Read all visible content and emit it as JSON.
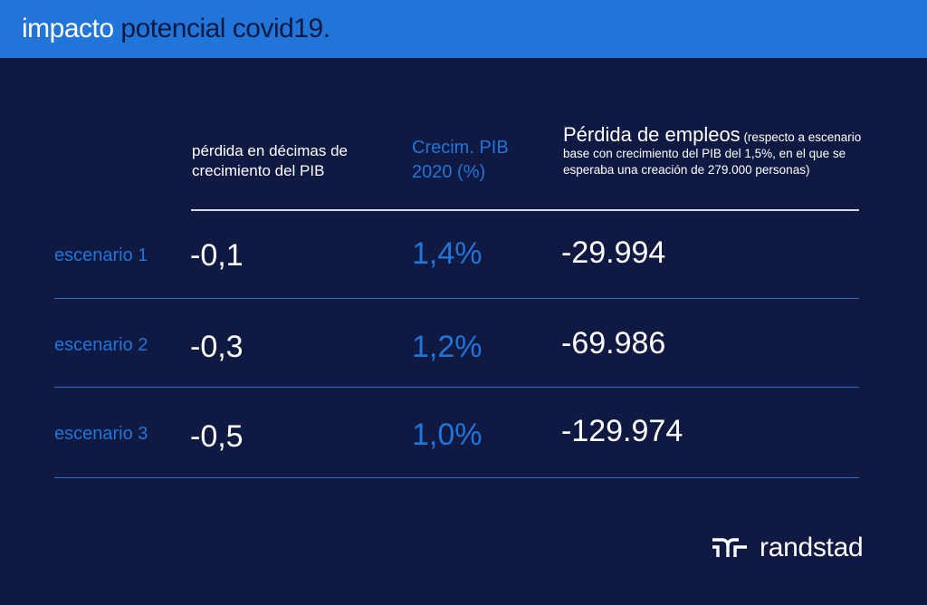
{
  "header": {
    "title_word1": "impacto",
    "title_rest": " potencial covid19."
  },
  "columns": {
    "loss": "pérdida en décimas de crecimiento del PIB",
    "gdp": "Crecim. PIB 2020 (%)",
    "jobs_main": "Pérdida de empleos",
    "jobs_note": " (respecto a escenario base con crecimiento del PIB del 1,5%, en el que se esperaba una creación de 279.000 personas)"
  },
  "rows": [
    {
      "label": "escenario 1",
      "loss": "-0,1",
      "gdp": "1,4%",
      "jobs": "-29.994"
    },
    {
      "label": "escenario 2",
      "loss": "-0,3",
      "gdp": "1,2%",
      "jobs": "-69.986"
    },
    {
      "label": "escenario 3",
      "loss": "-0,5",
      "gdp": "1,0%",
      "jobs": "-129.974"
    }
  ],
  "brand": {
    "logo_text": "randstad",
    "logo_icon": "randstad-logo-icon"
  },
  "colors": {
    "background": "#0f1941",
    "banner": "#2175d9",
    "accent": "#2175d9",
    "text": "#ffffff"
  }
}
